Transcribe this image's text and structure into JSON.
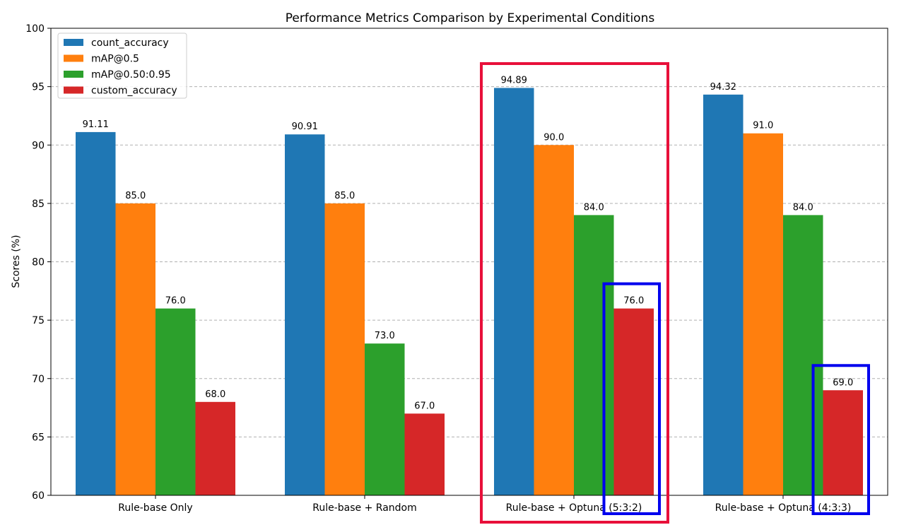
{
  "chart_data": {
    "type": "bar",
    "title": "Performance Metrics Comparison by Experimental Conditions",
    "xlabel": "",
    "ylabel": "Scores (%)",
    "ylim": [
      60,
      100
    ],
    "yticks": [
      60,
      65,
      70,
      75,
      80,
      85,
      90,
      95,
      100
    ],
    "grid": "horizontal dashed",
    "legend_position": "top-left",
    "categories": [
      "Rule-base Only",
      "Rule-base + Random",
      "Rule-base + Optuna (5:3:2)",
      "Rule-base + Optuna (4:3:3)"
    ],
    "series": [
      {
        "name": "count_accuracy",
        "color": "#1f77b4",
        "values": [
          91.11,
          90.91,
          94.89,
          94.32
        ],
        "labels": [
          "91.11",
          "90.91",
          "94.89",
          "94.32"
        ]
      },
      {
        "name": "mAP@0.5",
        "color": "#ff7f0e",
        "values": [
          85.0,
          85.0,
          90.0,
          91.0
        ],
        "labels": [
          "85.0",
          "85.0",
          "90.0",
          "91.0"
        ]
      },
      {
        "name": "mAP@0.50:0.95",
        "color": "#2ca02c",
        "values": [
          76.0,
          73.0,
          84.0,
          84.0
        ],
        "labels": [
          "76.0",
          "73.0",
          "84.0",
          "84.0"
        ]
      },
      {
        "name": "custom_accuracy",
        "color": "#d62728",
        "values": [
          68.0,
          67.0,
          76.0,
          69.0
        ],
        "labels": [
          "68.0",
          "67.0",
          "76.0",
          "69.0"
        ]
      }
    ],
    "annotations": [
      {
        "type": "highlight-box",
        "target": "group",
        "category_index": 2,
        "color": "#e8103a"
      },
      {
        "type": "highlight-box",
        "target": "bar",
        "category_index": 2,
        "series_index": 3,
        "color": "#0000ee"
      },
      {
        "type": "highlight-box",
        "target": "bar",
        "category_index": 3,
        "series_index": 3,
        "color": "#0000ee"
      }
    ]
  }
}
